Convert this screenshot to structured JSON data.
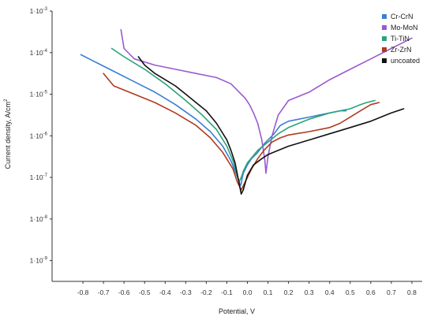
{
  "chart_data": {
    "type": "line",
    "title": "",
    "xlabel": "Potential, V",
    "ylabel": "Current density, A/cm",
    "ylabel_sup": "2",
    "xlim": [
      -0.95,
      0.85
    ],
    "ylim_log10": [
      -9.5,
      -3
    ],
    "y_scale": "log",
    "grid": false,
    "legend_position": "top-right",
    "x_ticks": [
      {
        "v": -0.8,
        "label": "-0.8"
      },
      {
        "v": -0.7,
        "label": "-0.7"
      },
      {
        "v": -0.6,
        "label": "-0.6"
      },
      {
        "v": -0.5,
        "label": "-0.5"
      },
      {
        "v": -0.4,
        "label": "-0.4"
      },
      {
        "v": -0.3,
        "label": "-0.3"
      },
      {
        "v": -0.2,
        "label": "-0.2"
      },
      {
        "v": -0.1,
        "label": "-0.1"
      },
      {
        "v": 0.0,
        "label": "0.0"
      },
      {
        "v": 0.1,
        "label": "0.1"
      },
      {
        "v": 0.2,
        "label": "0.2"
      },
      {
        "v": 0.3,
        "label": "0.3"
      },
      {
        "v": 0.4,
        "label": "0.4"
      },
      {
        "v": 0.5,
        "label": "0.5"
      },
      {
        "v": 0.6,
        "label": "0.6"
      },
      {
        "v": 0.7,
        "label": "0.7"
      },
      {
        "v": 0.8,
        "label": "0.8"
      }
    ],
    "y_ticks": [
      {
        "v": -9,
        "base": "1·10",
        "exp": "-9"
      },
      {
        "v": -8,
        "base": "1·10",
        "exp": "-8"
      },
      {
        "v": -7,
        "base": "1·10",
        "exp": "-7"
      },
      {
        "v": -6,
        "base": "1·10",
        "exp": "-6"
      },
      {
        "v": -5,
        "base": "1·10",
        "exp": "-5"
      },
      {
        "v": -4,
        "base": "1·10",
        "exp": "-4"
      },
      {
        "v": -3,
        "base": "1·10",
        "exp": "-3"
      }
    ],
    "series": [
      {
        "name": "Cr-CrN",
        "color": "#3a7fd5",
        "x": [
          -0.81,
          -0.75,
          -0.65,
          -0.55,
          -0.45,
          -0.35,
          -0.25,
          -0.18,
          -0.12,
          -0.08,
          -0.06,
          -0.04,
          -0.035,
          -0.03,
          -0.025,
          -0.02,
          -0.01,
          0.0,
          0.02,
          0.05,
          0.08,
          0.1,
          0.13,
          0.16,
          0.2,
          0.25,
          0.3,
          0.35,
          0.4,
          0.45,
          0.48
        ],
        "log_y": [
          -4.05,
          -4.2,
          -4.45,
          -4.7,
          -4.95,
          -5.25,
          -5.6,
          -5.9,
          -6.25,
          -6.6,
          -6.85,
          -7.1,
          -7.2,
          -7.15,
          -7.0,
          -6.9,
          -6.8,
          -6.7,
          -6.55,
          -6.4,
          -6.2,
          -6.1,
          -5.95,
          -5.75,
          -5.65,
          -5.6,
          -5.55,
          -5.5,
          -5.45,
          -5.4,
          -5.4
        ]
      },
      {
        "name": "Mo-MoN",
        "color": "#9b59d0",
        "x": [
          -0.615,
          -0.6,
          -0.55,
          -0.45,
          -0.35,
          -0.25,
          -0.15,
          -0.08,
          -0.04,
          -0.01,
          0.01,
          0.03,
          0.05,
          0.07,
          0.085,
          0.09,
          0.1,
          0.12,
          0.15,
          0.2,
          0.3,
          0.4,
          0.5,
          0.6,
          0.7,
          0.8
        ],
        "log_y": [
          -3.45,
          -3.9,
          -4.15,
          -4.3,
          -4.4,
          -4.5,
          -4.6,
          -4.75,
          -4.95,
          -5.1,
          -5.25,
          -5.45,
          -5.7,
          -6.1,
          -6.6,
          -6.9,
          -6.5,
          -6.0,
          -5.5,
          -5.15,
          -4.95,
          -4.65,
          -4.4,
          -4.15,
          -3.9,
          -3.65
        ]
      },
      {
        "name": "Ti-TiN",
        "color": "#2aa37a",
        "x": [
          -0.66,
          -0.6,
          -0.5,
          -0.4,
          -0.3,
          -0.22,
          -0.15,
          -0.1,
          -0.07,
          -0.05,
          -0.04,
          -0.03,
          -0.02,
          0.0,
          0.05,
          0.1,
          0.15,
          0.2,
          0.3,
          0.4,
          0.5,
          0.55,
          0.58,
          0.62
        ],
        "log_y": [
          -3.9,
          -4.1,
          -4.4,
          -4.75,
          -5.15,
          -5.5,
          -5.85,
          -6.25,
          -6.6,
          -6.95,
          -7.1,
          -7.0,
          -6.85,
          -6.65,
          -6.35,
          -6.15,
          -5.95,
          -5.8,
          -5.6,
          -5.45,
          -5.35,
          -5.25,
          -5.2,
          -5.15
        ]
      },
      {
        "name": "Zr-ZrN",
        "color": "#b03a1e",
        "x": [
          -0.7,
          -0.65,
          -0.55,
          -0.45,
          -0.35,
          -0.25,
          -0.18,
          -0.12,
          -0.07,
          -0.05,
          -0.03,
          -0.02,
          0.0,
          0.02,
          0.05,
          0.08,
          0.12,
          0.16,
          0.2,
          0.3,
          0.4,
          0.45,
          0.5,
          0.55,
          0.6,
          0.64
        ],
        "log_y": [
          -4.5,
          -4.8,
          -5.0,
          -5.2,
          -5.45,
          -5.75,
          -6.05,
          -6.4,
          -6.8,
          -7.1,
          -7.3,
          -7.2,
          -7.0,
          -6.8,
          -6.55,
          -6.35,
          -6.15,
          -6.05,
          -5.98,
          -5.9,
          -5.8,
          -5.7,
          -5.55,
          -5.4,
          -5.25,
          -5.2
        ]
      },
      {
        "name": "uncoated",
        "color": "#111111",
        "x": [
          -0.53,
          -0.5,
          -0.45,
          -0.4,
          -0.35,
          -0.3,
          -0.25,
          -0.2,
          -0.15,
          -0.1,
          -0.08,
          -0.06,
          -0.05,
          -0.04,
          -0.03,
          -0.02,
          0.0,
          0.03,
          0.07,
          0.1,
          0.15,
          0.2,
          0.3,
          0.4,
          0.5,
          0.6,
          0.7,
          0.76
        ],
        "log_y": [
          -4.1,
          -4.3,
          -4.5,
          -4.65,
          -4.8,
          -5.0,
          -5.2,
          -5.4,
          -5.7,
          -6.1,
          -6.35,
          -6.65,
          -6.9,
          -7.15,
          -7.4,
          -7.3,
          -6.95,
          -6.7,
          -6.55,
          -6.45,
          -6.35,
          -6.25,
          -6.1,
          -5.95,
          -5.8,
          -5.65,
          -5.45,
          -5.35
        ]
      }
    ]
  }
}
